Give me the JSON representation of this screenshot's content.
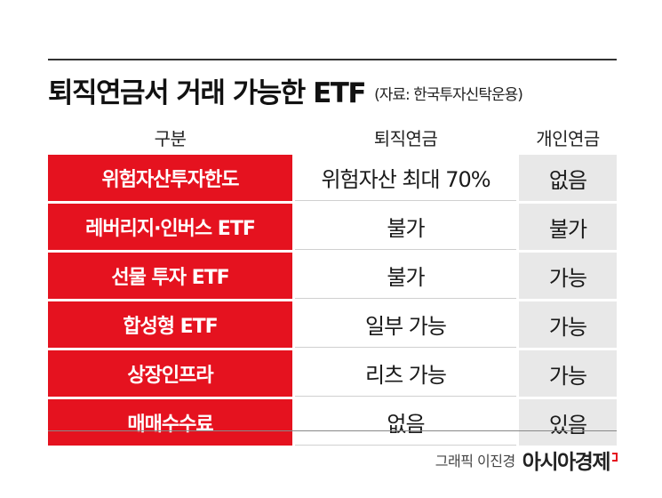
{
  "title": "퇴직연금서 거래 가능한 ETF",
  "source": "(자료: 한국투자신탁운용)",
  "headers": [
    "구분",
    "퇴직연금",
    "개인연금"
  ],
  "rows": [
    {
      "category": "위험자산투자한도",
      "retirement": "위험자산 최대 70%",
      "personal": "없음"
    },
    {
      "category": "레버리지·인버스 ETF",
      "retirement": "불가",
      "personal": "불가"
    },
    {
      "category": "선물 투자 ETF",
      "retirement": "불가",
      "personal": "가능"
    },
    {
      "category": "합성형 ETF",
      "retirement": "일부 가능",
      "personal": "가능"
    },
    {
      "category": "상장인프라",
      "retirement": "리츠 가능",
      "personal": "가능"
    },
    {
      "category": "매매수수료",
      "retirement": "없음",
      "personal": "있음"
    }
  ],
  "credit": "그래픽 이진경",
  "brand": "아시아경제",
  "colors": {
    "accent": "#e5121f",
    "shade": "#e8e8e8"
  }
}
